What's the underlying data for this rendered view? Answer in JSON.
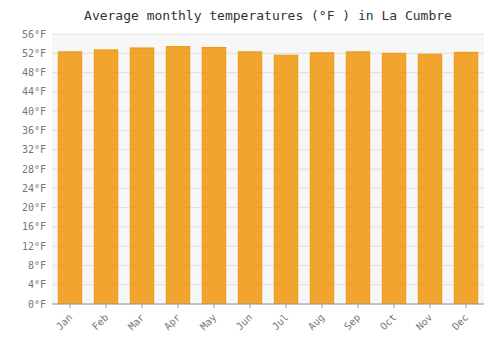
{
  "chart_data": {
    "type": "bar",
    "title": "Average monthly temperatures (°F ) in La Cumbre",
    "categories": [
      "Jan",
      "Feb",
      "Mar",
      "Apr",
      "May",
      "Jun",
      "Jul",
      "Aug",
      "Sep",
      "Oct",
      "Nov",
      "Dec"
    ],
    "values": [
      52.3,
      52.7,
      53.1,
      53.4,
      53.2,
      52.3,
      51.6,
      52.1,
      52.3,
      52.0,
      51.8,
      52.2
    ],
    "color": "#F0960A",
    "ylim": [
      0,
      56
    ],
    "yticks": [
      {
        "value": 0,
        "label": "0°F"
      },
      {
        "value": 4,
        "label": "4°F"
      },
      {
        "value": 8,
        "label": "8°F"
      },
      {
        "value": 12,
        "label": "12°F"
      },
      {
        "value": 16,
        "label": "16°F"
      },
      {
        "value": 20,
        "label": "20°F"
      },
      {
        "value": 24,
        "label": "24°F"
      },
      {
        "value": 28,
        "label": "28°F"
      },
      {
        "value": 32,
        "label": "32°F"
      },
      {
        "value": 36,
        "label": "36°F"
      },
      {
        "value": 40,
        "label": "40°F"
      },
      {
        "value": 44,
        "label": "44°F"
      },
      {
        "value": 48,
        "label": "48°F"
      },
      {
        "value": 52,
        "label": "52°F"
      },
      {
        "value": 56,
        "label": "56°F"
      }
    ],
    "grid": true
  }
}
